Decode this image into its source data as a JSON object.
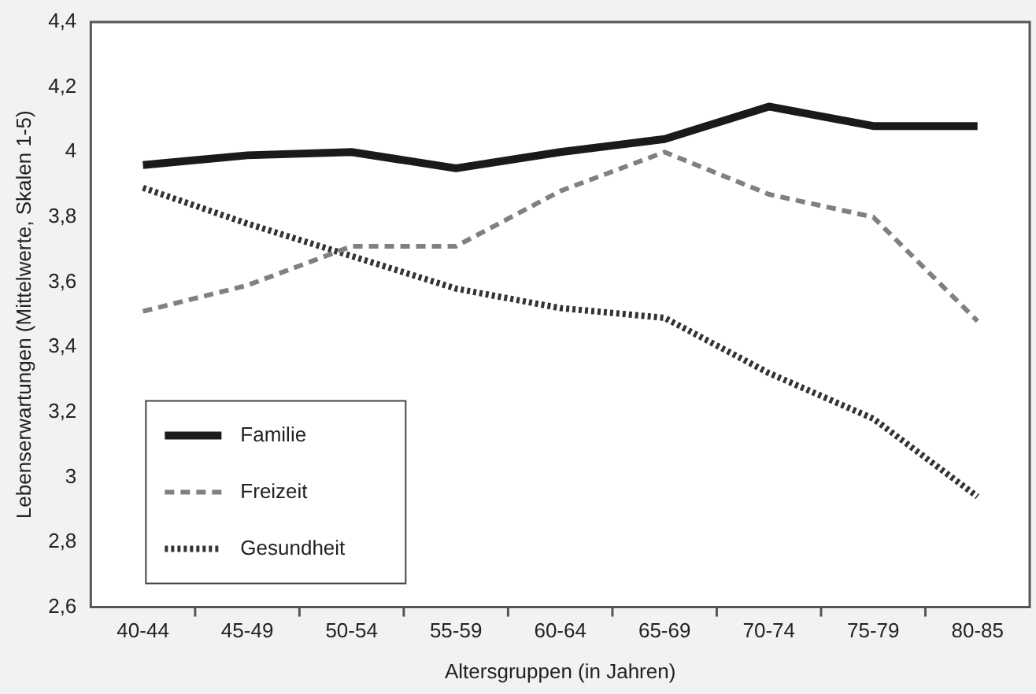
{
  "chart_data": {
    "type": "line",
    "xlabel": "Altersgruppen (in Jahren)",
    "ylabel": "Lebenserwartungen (Mittelwerte, Skalen 1-5)",
    "categories": [
      "40-44",
      "45-49",
      "50-54",
      "55-59",
      "60-64",
      "65-69",
      "70-74",
      "75-79",
      "80-85"
    ],
    "series": [
      {
        "name": "Familie",
        "color": "#1a1a1a",
        "line_style": "solid",
        "values": [
          3.96,
          3.99,
          4.0,
          3.95,
          4.0,
          4.04,
          4.14,
          4.08,
          4.08
        ]
      },
      {
        "name": "Freizeit",
        "color": "#808080",
        "line_style": "dashed",
        "values": [
          3.51,
          3.59,
          3.71,
          3.71,
          3.88,
          4.0,
          3.87,
          3.8,
          3.48
        ]
      },
      {
        "name": "Gesundheit",
        "color": "#333333",
        "line_style": "dotted",
        "values": [
          3.89,
          3.78,
          3.68,
          3.58,
          3.52,
          3.49,
          3.32,
          3.18,
          2.94
        ]
      }
    ],
    "ylim": [
      2.6,
      4.4
    ],
    "yticks": [
      {
        "value": 2.6,
        "label": "2,6"
      },
      {
        "value": 2.8,
        "label": "2,8"
      },
      3,
      {
        "value": 3.2,
        "label": "3,2"
      },
      {
        "value": 3.4,
        "label": "3,4"
      },
      {
        "value": 3.6,
        "label": "3,6"
      },
      {
        "value": 3.8,
        "label": "3,8"
      },
      4,
      {
        "value": 4.2,
        "label": "4,2"
      },
      {
        "value": 4.4,
        "label": "4,4"
      }
    ],
    "grid": false,
    "legend": "bottom left",
    "marker": "none"
  }
}
